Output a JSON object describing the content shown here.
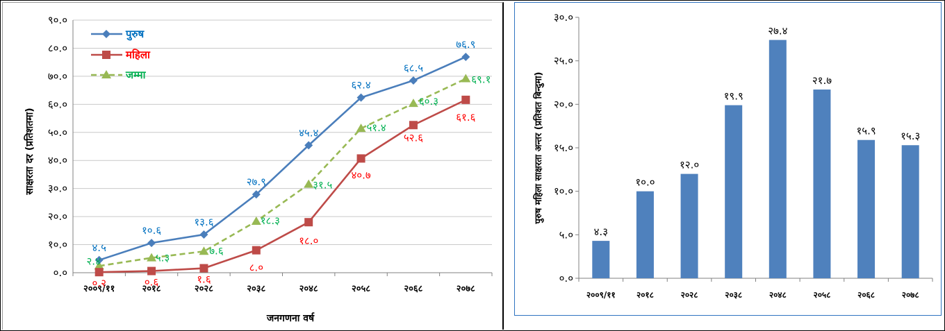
{
  "chart_data": [
    {
      "type": "line",
      "title": "",
      "xlabel": "जनगणना वर्ष",
      "ylabel": "साक्षरता दर (प्रतिशतमा)",
      "ylim": [
        0,
        90
      ],
      "yticks": [
        "०.०",
        "१०.०",
        "२०.०",
        "३०.०",
        "४०.०",
        "५०.०",
        "६०.०",
        "७०.०",
        "८०.०",
        "९०.०"
      ],
      "grid": true,
      "legend_position": "top-left",
      "categories": [
        "२००९/११",
        "२०१८",
        "२०२८",
        "२०३८",
        "२०४८",
        "२०५८",
        "२०६८",
        "२०७८"
      ],
      "series": [
        {
          "name": "पुरुष",
          "color": "#4a7ebb",
          "marker": "diamond",
          "dash": "solid",
          "values": [
            4.5,
            10.6,
            13.6,
            27.9,
            45.4,
            62.4,
            68.5,
            76.9
          ],
          "labels": [
            "४.५",
            "१०.६",
            "१३.६",
            "२७.९",
            "४५.४",
            "६२.४",
            "६८.५",
            "७६.९"
          ]
        },
        {
          "name": "महिला",
          "color": "#be4b48",
          "marker": "square",
          "dash": "solid",
          "values": [
            0.2,
            0.6,
            1.6,
            8.0,
            18.0,
            40.7,
            52.6,
            61.6
          ],
          "labels": [
            "०.२",
            "०.६",
            "१.६",
            "८.०",
            "१८.०",
            "४०.७",
            "५२.६",
            "६१.६"
          ]
        },
        {
          "name": "जम्मा",
          "color": "#98b954",
          "marker": "triangle",
          "dash": "dashed",
          "values": [
            2.4,
            5.3,
            7.6,
            18.3,
            31.5,
            51.4,
            60.3,
            69.1
          ],
          "labels": [
            "२.४",
            "५.३",
            "७.६",
            "१८.३",
            "३१.५",
            "५१.४",
            "६०.३",
            "६९.१"
          ]
        }
      ],
      "label_colors": {
        "पुरुष": "#0070c0",
        "महिला": "#ff0000",
        "जम्मा": "#00b050"
      }
    },
    {
      "type": "bar",
      "title": "",
      "xlabel": "",
      "ylabel": "पुरुष महिला साक्षरता अन्तर (प्रतिशत बिन्दुमा)",
      "ylim": [
        0,
        30
      ],
      "yticks": [
        "०.०",
        "५.०",
        "१०.०",
        "१५.०",
        "२०.०",
        "२५.०",
        "३०.०"
      ],
      "grid": false,
      "categories": [
        "२००९/११",
        "२०१८",
        "२०२८",
        "२०३८",
        "२०४८",
        "२०५८",
        "२०६८",
        "२०७८"
      ],
      "values": [
        4.3,
        10.0,
        12.0,
        19.9,
        27.4,
        21.7,
        15.9,
        15.3
      ],
      "labels": [
        "४.३",
        "१०.०",
        "१२.०",
        "१९.९",
        "२७.४",
        "२१.७",
        "१५.९",
        "१५.३"
      ],
      "bar_color": "#4f81bd"
    }
  ]
}
